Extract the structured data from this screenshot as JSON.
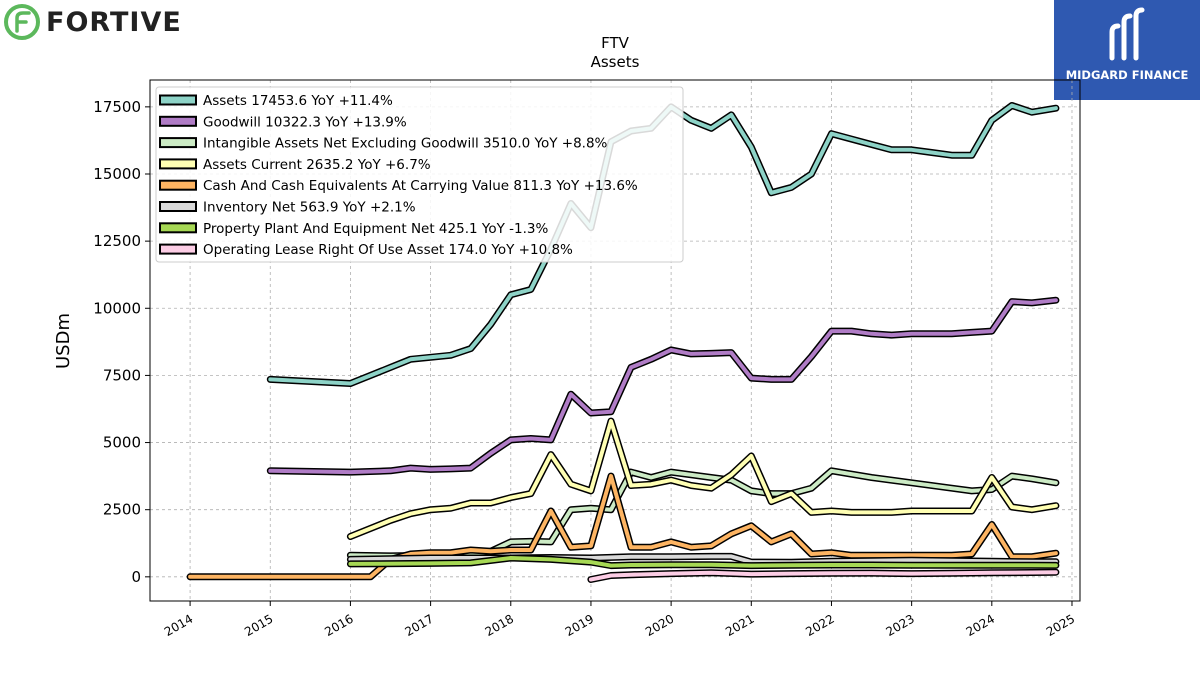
{
  "brand": {
    "name": "FORTIVE",
    "logo_icon": "fortive-logo-icon",
    "logo_color": "#5cb85c"
  },
  "partner": {
    "name": "MIDGARD FINANCE",
    "logo_icon": "midgard-logo-icon",
    "bg_color": "#2f59b1"
  },
  "chart_data": {
    "type": "line",
    "title": "FTV",
    "subtitle": "Assets",
    "ylabel": "USDm",
    "xlabel": "",
    "xlim": [
      2013.5,
      2025.1
    ],
    "ylim": [
      -900,
      18500
    ],
    "yticks": [
      0,
      2500,
      5000,
      7500,
      10000,
      12500,
      15000,
      17500
    ],
    "xticks": [
      "2014",
      "2015",
      "2016",
      "2017",
      "2018",
      "2019",
      "2020",
      "2021",
      "2022",
      "2023",
      "2024",
      "2025"
    ],
    "grid": true,
    "legend_position": "top-left",
    "series": [
      {
        "name": "Assets",
        "legend": "Assets  17453.6 YoY +11.4%",
        "color": "#8dd3c7",
        "x": [
          2015.0,
          2016.0,
          2016.5,
          2016.75,
          2017.25,
          2017.5,
          2017.75,
          2018.0,
          2018.25,
          2018.5,
          2018.75,
          2019.0,
          2019.25,
          2019.5,
          2019.75,
          2020.0,
          2020.25,
          2020.5,
          2020.75,
          2021.0,
          2021.25,
          2021.5,
          2021.75,
          2022.0,
          2022.25,
          2022.5,
          2022.75,
          2023.0,
          2023.25,
          2023.5,
          2023.75,
          2024.0,
          2024.25,
          2024.5,
          2024.8
        ],
        "y": [
          7350,
          7200,
          7800,
          8100,
          8250,
          8500,
          9400,
          10500,
          10700,
          12200,
          13900,
          13000,
          16200,
          16600,
          16700,
          17500,
          17000,
          16700,
          17200,
          16000,
          14300,
          14500,
          15000,
          16500,
          16300,
          16100,
          15900,
          15900,
          15800,
          15700,
          15700,
          17000,
          17550,
          17300,
          17450
        ]
      },
      {
        "name": "Goodwill",
        "legend": "Goodwill  10322.3 YoY +13.9%",
        "color": "#b07cc6",
        "x": [
          2015.0,
          2016.0,
          2016.5,
          2016.75,
          2017.0,
          2017.25,
          2017.5,
          2017.75,
          2018.0,
          2018.25,
          2018.5,
          2018.75,
          2019.0,
          2019.25,
          2019.5,
          2019.75,
          2020.0,
          2020.25,
          2020.5,
          2020.75,
          2021.0,
          2021.25,
          2021.5,
          2021.75,
          2022.0,
          2022.25,
          2022.5,
          2022.75,
          2023.0,
          2023.25,
          2023.5,
          2023.75,
          2024.0,
          2024.25,
          2024.5,
          2024.8
        ],
        "y": [
          3950,
          3900,
          3950,
          4050,
          4000,
          4020,
          4050,
          4600,
          5100,
          5150,
          5100,
          6800,
          6100,
          6150,
          7800,
          8100,
          8450,
          8300,
          8320,
          8350,
          7400,
          7350,
          7350,
          8200,
          9150,
          9150,
          9050,
          9000,
          9050,
          9050,
          9050,
          9100,
          9150,
          10250,
          10200,
          10300
        ]
      },
      {
        "name": "Intangible Assets Net Excluding Goodwill",
        "legend": "Intangible Assets Net Excluding Goodwill  3510.0 YoY +8.8%",
        "color": "#ccebc5",
        "x": [
          2016.0,
          2016.5,
          2016.75,
          2017.0,
          2017.5,
          2017.75,
          2018.0,
          2018.25,
          2018.5,
          2018.75,
          2019.0,
          2019.25,
          2019.5,
          2019.75,
          2020.0,
          2020.25,
          2020.5,
          2020.75,
          2021.0,
          2021.25,
          2021.5,
          2021.75,
          2022.0,
          2022.5,
          2023.0,
          2023.5,
          2023.75,
          2024.0,
          2024.25,
          2024.5,
          2024.8
        ],
        "y": [
          800,
          780,
          790,
          800,
          820,
          950,
          1300,
          1320,
          1300,
          2500,
          2550,
          2500,
          3900,
          3700,
          3900,
          3800,
          3700,
          3600,
          3200,
          3100,
          3100,
          3300,
          3950,
          3700,
          3500,
          3300,
          3200,
          3250,
          3750,
          3650,
          3500
        ]
      },
      {
        "name": "Assets Current",
        "legend": "Assets Current  2635.2 YoY +6.7%",
        "color": "#ffffb3",
        "x": [
          2016.0,
          2016.5,
          2016.75,
          2017.0,
          2017.25,
          2017.5,
          2017.75,
          2018.0,
          2018.25,
          2018.5,
          2018.75,
          2019.0,
          2019.25,
          2019.5,
          2019.75,
          2020.0,
          2020.25,
          2020.5,
          2020.75,
          2021.0,
          2021.25,
          2021.5,
          2021.75,
          2022.0,
          2022.25,
          2022.5,
          2022.75,
          2023.0,
          2023.25,
          2023.5,
          2023.75,
          2024.0,
          2024.25,
          2024.5,
          2024.8
        ],
        "y": [
          1500,
          2100,
          2350,
          2500,
          2550,
          2750,
          2750,
          2950,
          3100,
          4550,
          3450,
          3200,
          5800,
          3400,
          3450,
          3600,
          3400,
          3300,
          3800,
          4500,
          2800,
          3100,
          2400,
          2450,
          2400,
          2400,
          2400,
          2450,
          2450,
          2450,
          2450,
          3700,
          2600,
          2500,
          2650
        ]
      },
      {
        "name": "Cash And Cash Equivalents At Carrying Value",
        "legend": "Cash And Cash Equivalents At Carrying Value  811.3 YoY +13.6%",
        "color": "#fdb462",
        "x": [
          2014.0,
          2015.0,
          2016.0,
          2016.25,
          2016.5,
          2016.75,
          2017.0,
          2017.25,
          2017.5,
          2017.75,
          2018.0,
          2018.25,
          2018.5,
          2018.75,
          2019.0,
          2019.25,
          2019.5,
          2019.75,
          2020.0,
          2020.25,
          2020.5,
          2020.75,
          2021.0,
          2021.25,
          2021.5,
          2021.75,
          2022.0,
          2022.25,
          2022.5,
          2022.75,
          2023.0,
          2023.25,
          2023.5,
          2023.75,
          2024.0,
          2024.25,
          2024.5,
          2024.8
        ],
        "y": [
          0,
          0,
          0,
          0,
          650,
          850,
          900,
          900,
          1000,
          950,
          1000,
          1000,
          2450,
          1100,
          1150,
          3750,
          1100,
          1100,
          1300,
          1100,
          1150,
          1600,
          1900,
          1300,
          1600,
          850,
          900,
          800,
          800,
          800,
          800,
          800,
          800,
          850,
          1950,
          750,
          750,
          880
        ]
      },
      {
        "name": "Inventory Net",
        "legend": "Inventory Net  563.9 YoY +2.1%",
        "color": "#d9d9d9",
        "x": [
          2016.0,
          2017.0,
          2018.0,
          2018.5,
          2019.0,
          2019.5,
          2020.0,
          2020.5,
          2020.75,
          2021.0,
          2021.5,
          2022.0,
          2022.5,
          2023.0,
          2023.5,
          2024.0,
          2024.5,
          2024.8
        ],
        "y": [
          650,
          700,
          700,
          720,
          700,
          750,
          750,
          760,
          760,
          550,
          540,
          580,
          600,
          620,
          600,
          580,
          560,
          560
        ]
      },
      {
        "name": "Property Plant And Equipment Net",
        "legend": "Property Plant And Equipment Net  425.1 YoY -1.3%",
        "color": "#a6d854",
        "x": [
          2016.0,
          2017.0,
          2017.5,
          2018.0,
          2018.5,
          2018.75,
          2019.0,
          2019.25,
          2019.5,
          2020.0,
          2020.5,
          2021.0,
          2021.5,
          2022.0,
          2022.5,
          2023.0,
          2023.5,
          2024.0,
          2024.5,
          2024.8
        ],
        "y": [
          480,
          500,
          520,
          700,
          650,
          600,
          550,
          420,
          440,
          450,
          450,
          420,
          430,
          440,
          440,
          430,
          430,
          430,
          430,
          425
        ]
      },
      {
        "name": "Operating Lease Right Of Use Asset",
        "legend": "Operating Lease Right Of Use Asset  174.0 YoY +10.8%",
        "color": "#fccde5",
        "x": [
          2019.0,
          2019.25,
          2019.5,
          2020.0,
          2020.5,
          2021.0,
          2021.5,
          2022.0,
          2022.5,
          2023.0,
          2023.5,
          2024.0,
          2024.5,
          2024.8
        ],
        "y": [
          -100,
          50,
          80,
          120,
          150,
          100,
          120,
          130,
          140,
          120,
          130,
          150,
          160,
          174
        ]
      }
    ]
  }
}
